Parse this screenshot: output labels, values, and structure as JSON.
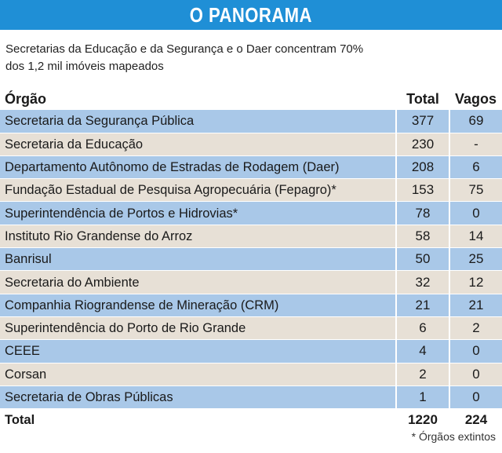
{
  "banner": {
    "title": "O PANORAMA",
    "color": "#1f8fd6"
  },
  "subtitle": "Secretarias da Educação e da Segurança e o Daer concentram 70% dos 1,2 mil imóveis mapeados",
  "table": {
    "headers": [
      "Órgão",
      "Total",
      "Vagos"
    ],
    "rows": [
      [
        "Secretaria da Segurança Pública",
        "377",
        "69"
      ],
      [
        "Secretaria da Educação",
        "230",
        "-"
      ],
      [
        "Departamento Autônomo de Estradas de Rodagem (Daer)",
        "208",
        "6"
      ],
      [
        "Fundação Estadual de Pesquisa Agropecuária (Fepagro)*",
        "153",
        "75"
      ],
      [
        "Superintendência de Portos e Hidrovias*",
        "78",
        "0"
      ],
      [
        "Instituto Rio Grandense do Arroz",
        "58",
        "14"
      ],
      [
        "Banrisul",
        "50",
        "25"
      ],
      [
        "Secretaria do Ambiente",
        "32",
        "12"
      ],
      [
        "Companhia Riograndense de Mineração (CRM)",
        "21",
        "21"
      ],
      [
        "Superintendência do Porto de Rio Grande",
        "6",
        "2"
      ],
      [
        "CEEE",
        "4",
        "0"
      ],
      [
        "Corsan",
        "2",
        "0"
      ],
      [
        "Secretaria de Obras Públicas",
        "1",
        "0"
      ]
    ],
    "total": [
      "Total",
      "1220",
      "224"
    ]
  },
  "footnote": "* Órgãos extintos",
  "colors": {
    "row_blue": "#a9c8e8",
    "row_beige": "#e7e0d6"
  }
}
